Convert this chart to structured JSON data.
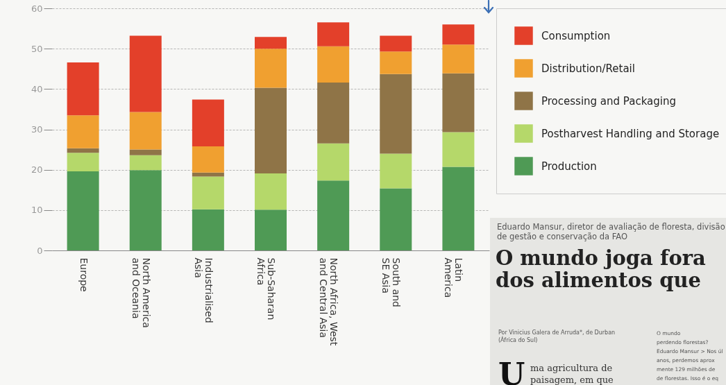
{
  "chart_data": {
    "type": "bar",
    "stacked": true,
    "categories": [
      "Europe",
      "North America and Oceania",
      "Industrialised Asia",
      "Sub-Saharan Africa",
      "North Africa, West and Central Asia",
      "South and SE Asia",
      "Latin America"
    ],
    "series": [
      {
        "name": "Production",
        "color": "#4f9a55",
        "values": [
          19.6,
          19.9,
          10.2,
          10.1,
          17.3,
          15.4,
          20.7
        ]
      },
      {
        "name": "Postharvest Handling and Storage",
        "color": "#b5d86a",
        "values": [
          4.6,
          3.7,
          8.1,
          9.0,
          9.2,
          8.6,
          8.6
        ]
      },
      {
        "name": "Processing and Packaging",
        "color": "#8f7447",
        "values": [
          1.1,
          1.4,
          1.0,
          21.2,
          15.1,
          19.7,
          14.6
        ]
      },
      {
        "name": "Distribution/Retail",
        "color": "#f0a030",
        "values": [
          8.2,
          9.3,
          6.5,
          9.7,
          9.0,
          5.6,
          7.1
        ]
      },
      {
        "name": "Consumption",
        "color": "#e3402a",
        "values": [
          13.1,
          18.9,
          11.6,
          2.9,
          5.9,
          3.9,
          5.0
        ]
      }
    ],
    "ylim": [
      0,
      60
    ],
    "yticks": [
      0,
      10,
      20,
      30,
      40,
      50,
      60
    ],
    "grid": "y",
    "legend": "right",
    "annotations": [
      "Eduardo Mansur, diretor de avaliação de floresta, divisão de gestão e conservação da FAO",
      "O mundo joga fora dos alimentos que",
      "Por Vinicius Galera de Arruda*, de Durban (África do Sul)",
      "U",
      "ma agricultura de paisagem, em que",
      "O mundo",
      "perdendo florestas?",
      "Eduardo Mansur > Nos úl",
      "anos, perdemos aprox",
      "mente 129 milhões de",
      "de florestas. Isso é o eq"
    ]
  }
}
